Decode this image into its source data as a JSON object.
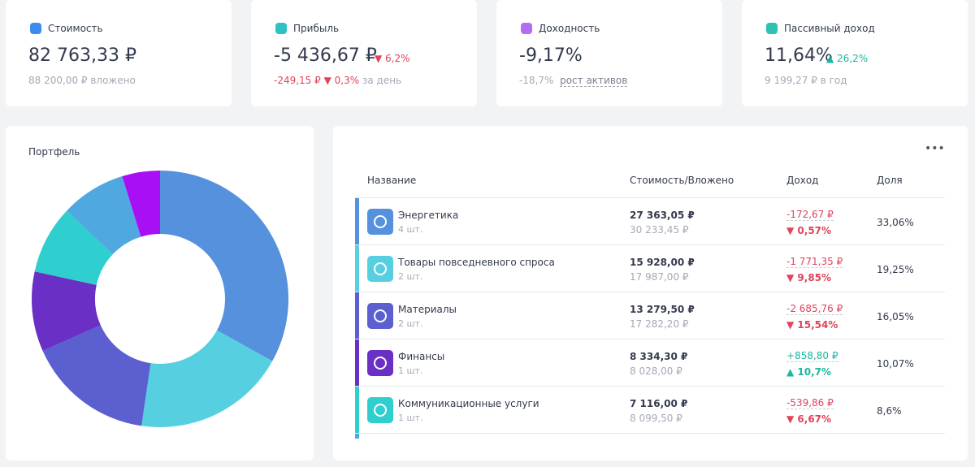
{
  "cards": [
    {
      "label": "Стоимость",
      "value": "82 763,33 ₽",
      "sub": "88 200,00 ₽ вложено"
    },
    {
      "label": "Прибыль",
      "value": "-5 436,67 ₽",
      "change": "6,2%",
      "sub": "-249,15 ₽",
      "sub_change": "0,3%",
      "sub_note": "за день"
    },
    {
      "label": "Доходность",
      "value": "-9,17%",
      "sub": "-18,7%",
      "sub_note": "рост активов"
    },
    {
      "label": "Пассивный доход",
      "value": "11,64%",
      "change": "26,2%",
      "sub": "9 199,27 ₽ в год"
    }
  ],
  "chart_data": {
    "type": "pie",
    "title": "Портфель",
    "values": [
      33.06,
      19.25,
      16.05,
      10.07,
      8.6,
      8.2,
      4.77
    ],
    "colors": [
      "#5591dc",
      "#56d0e0",
      "#5b5fcf",
      "#6a2fc4",
      "#2fcfcf",
      "#4fa8e0",
      "#a80ff5"
    ],
    "donut": true
  },
  "table": {
    "header": [
      "Название",
      "Стоимость/Вложено",
      "Доход",
      "Доля"
    ],
    "rows": [
      {
        "name": "Энергетика",
        "count": "4 шт.",
        "value": "27 363,05 ₽",
        "invested": "30 233,45 ₽",
        "income": "-172,67 ₽",
        "income_pct": "0,57%",
        "share": "33,06%"
      },
      {
        "name": "Товары повседневного спроса",
        "count": "2 шт.",
        "value": "15 928,00 ₽",
        "invested": "17 987,00 ₽",
        "income": "-1 771,35 ₽",
        "income_pct": "9,85%",
        "share": "19,25%"
      },
      {
        "name": "Материалы",
        "count": "2 шт.",
        "value": "13 279,50 ₽",
        "invested": "17 282,20 ₽",
        "income": "-2 685,76 ₽",
        "income_pct": "15,54%",
        "share": "16,05%"
      },
      {
        "name": "Финансы",
        "count": "1 шт.",
        "value": "8 334,30 ₽",
        "invested": "8 028,00 ₽",
        "income": "+858,80 ₽",
        "income_pct": "10,7%",
        "share": "10,07%"
      },
      {
        "name": "Коммуникационные услуги",
        "count": "1 шт.",
        "value": "7 116,00 ₽",
        "invested": "8 099,50 ₽",
        "income": "-539,86 ₽",
        "income_pct": "6,67%",
        "share": "8,6%"
      }
    ]
  }
}
